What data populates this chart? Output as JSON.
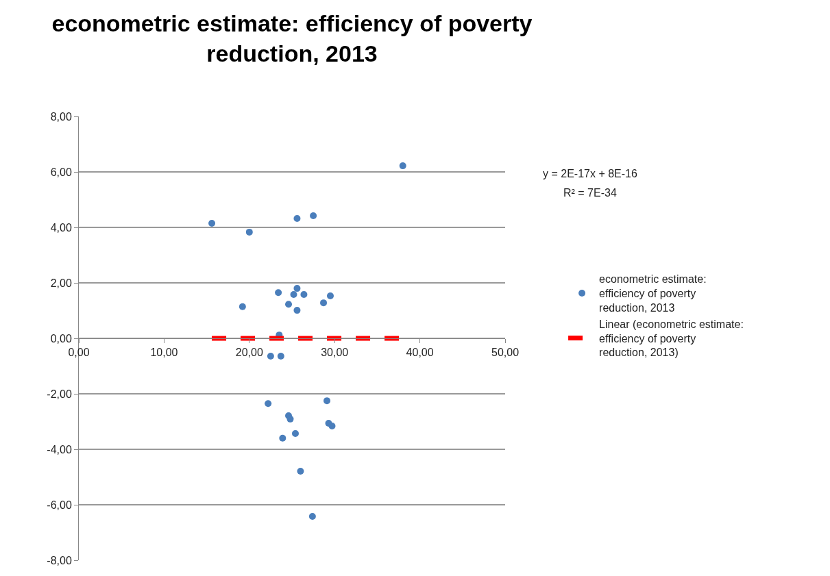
{
  "chart_data": {
    "type": "scatter",
    "title": "econometric estimate: efficiency of poverty reduction, 2013",
    "xlim": [
      0,
      50
    ],
    "xticks": [
      {
        "value": 0,
        "label": "0,00"
      },
      {
        "value": 10,
        "label": "10,00"
      },
      {
        "value": 20,
        "label": "20,00"
      },
      {
        "value": 30,
        "label": "30,00"
      },
      {
        "value": 40,
        "label": "40,00"
      },
      {
        "value": 50,
        "label": "50,00"
      }
    ],
    "ylim": [
      -8,
      8
    ],
    "yticks": [
      {
        "value": -8,
        "label": "-8,00"
      },
      {
        "value": -6,
        "label": "-6,00"
      },
      {
        "value": -4,
        "label": "-4,00"
      },
      {
        "value": -2,
        "label": "-2,00"
      },
      {
        "value": 0,
        "label": "0,00"
      },
      {
        "value": 2,
        "label": "2,00"
      },
      {
        "value": 4,
        "label": "4,00"
      },
      {
        "value": 6,
        "label": "6,00"
      },
      {
        "value": 8,
        "label": "8,00"
      }
    ],
    "grid": "y",
    "legend": "right",
    "annotations": [
      "y = 2E-17x + 8E-16",
      "R² = 7E-34"
    ],
    "series": [
      {
        "name": "econometric estimate: efficiency of poverty reduction, 2013",
        "marker": "circle",
        "color": "#4a7ebb",
        "x": [
          15.6,
          20.0,
          25.6,
          27.5,
          38.0,
          19.2,
          23.4,
          24.6,
          25.2,
          25.6,
          26.4,
          25.6,
          28.7,
          29.5,
          23.5,
          22.5,
          23.7,
          22.2,
          29.1,
          24.6,
          24.8,
          29.3,
          29.7,
          25.4,
          23.9,
          26.0,
          27.4
        ],
        "values": [
          4.15,
          3.83,
          4.32,
          4.42,
          6.22,
          1.14,
          1.65,
          1.23,
          1.58,
          1.8,
          1.58,
          1.01,
          1.28,
          1.53,
          0.12,
          -0.64,
          -0.64,
          -2.35,
          -2.25,
          -2.79,
          -2.91,
          -3.06,
          -3.16,
          -3.43,
          -3.6,
          -4.79,
          -6.42
        ]
      },
      {
        "name": "Linear (econometric estimate: efficiency of poverty reduction, 2013)",
        "type": "line",
        "marker": "none",
        "color": "#ff0000",
        "line_style": "dashed",
        "x": [
          15.6,
          38.0
        ],
        "values": [
          0,
          0
        ]
      }
    ]
  }
}
